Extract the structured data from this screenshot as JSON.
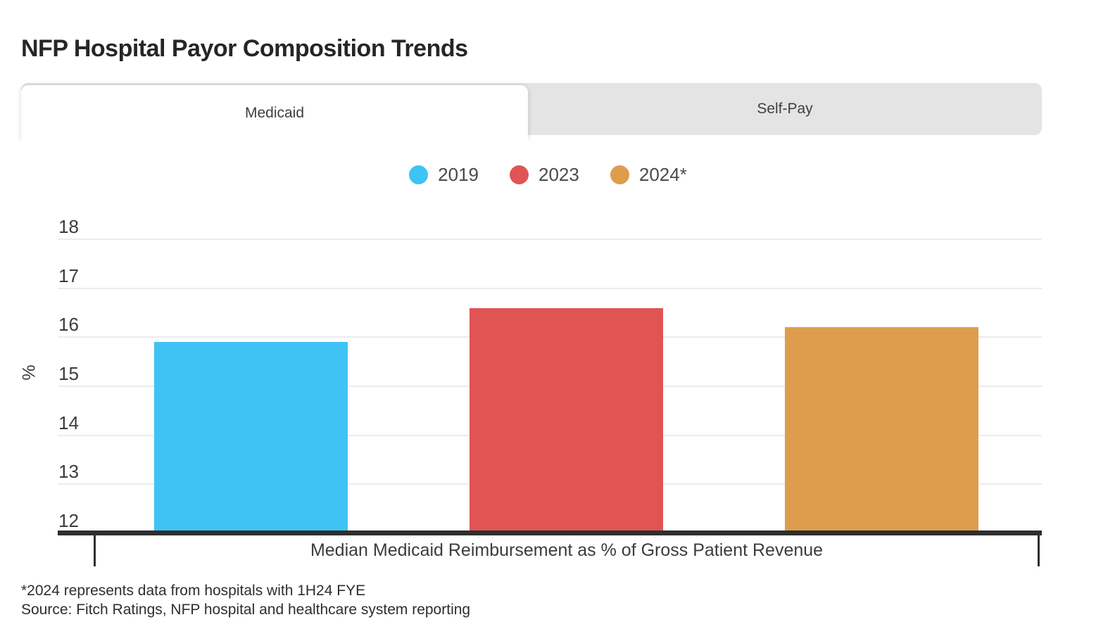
{
  "title": "NFP Hospital Payor Composition Trends",
  "tabs": [
    {
      "label": "Medicaid",
      "active": true
    },
    {
      "label": "Self-Pay",
      "active": false
    }
  ],
  "legend": [
    {
      "label": "2019",
      "color": "#3ec3f4"
    },
    {
      "label": "2023",
      "color": "#e05454"
    },
    {
      "label": "2024*",
      "color": "#dd9d4c"
    }
  ],
  "chart_data": {
    "type": "bar",
    "categories": [
      "2019",
      "2023",
      "2024*"
    ],
    "values": [
      15.9,
      16.6,
      16.2
    ],
    "colors": [
      "#3ec3f4",
      "#e05454",
      "#dd9d4c"
    ],
    "title": "NFP Hospital Payor Composition Trends",
    "xlabel": "Median Medicaid Reimbursement as % of Gross Patient Revenue",
    "ylabel": "%",
    "ylim": [
      12,
      18
    ],
    "yticks": [
      12,
      13,
      14,
      15,
      16,
      17,
      18
    ],
    "grid": true,
    "legend_position": "top-center"
  },
  "footnotes": [
    "*2024 represents data from hospitals with 1H24 FYE",
    "Source: Fitch Ratings, NFP hospital and healthcare system reporting"
  ]
}
